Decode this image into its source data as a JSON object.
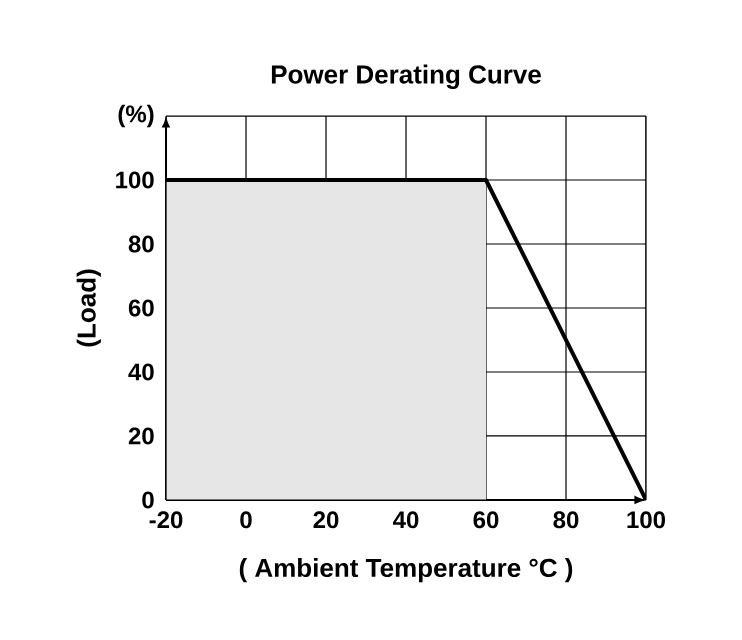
{
  "chart_data": {
    "type": "line",
    "title": "Power Derating Curve",
    "xlabel": "( Ambient Temperature  °C )",
    "ylabel": "(Load)",
    "series": [
      {
        "type": "area",
        "color": "#e6e6e6",
        "x": [
          -20,
          60
        ],
        "values": [
          100,
          100
        ]
      },
      {
        "color": "#000000",
        "x": [
          -20,
          60,
          100
        ],
        "values": [
          100,
          100,
          0
        ]
      }
    ],
    "xlim": [
      -20,
      100
    ],
    "ylim": [
      0,
      120
    ],
    "xticks": [
      -20,
      0,
      20,
      40,
      60,
      80,
      100
    ],
    "yticks": [
      0,
      20,
      40,
      60,
      80,
      100,
      {
        "value": 120,
        "label": "(%)"
      }
    ],
    "grid": true,
    "marker": "none",
    "line_style": "solid"
  }
}
